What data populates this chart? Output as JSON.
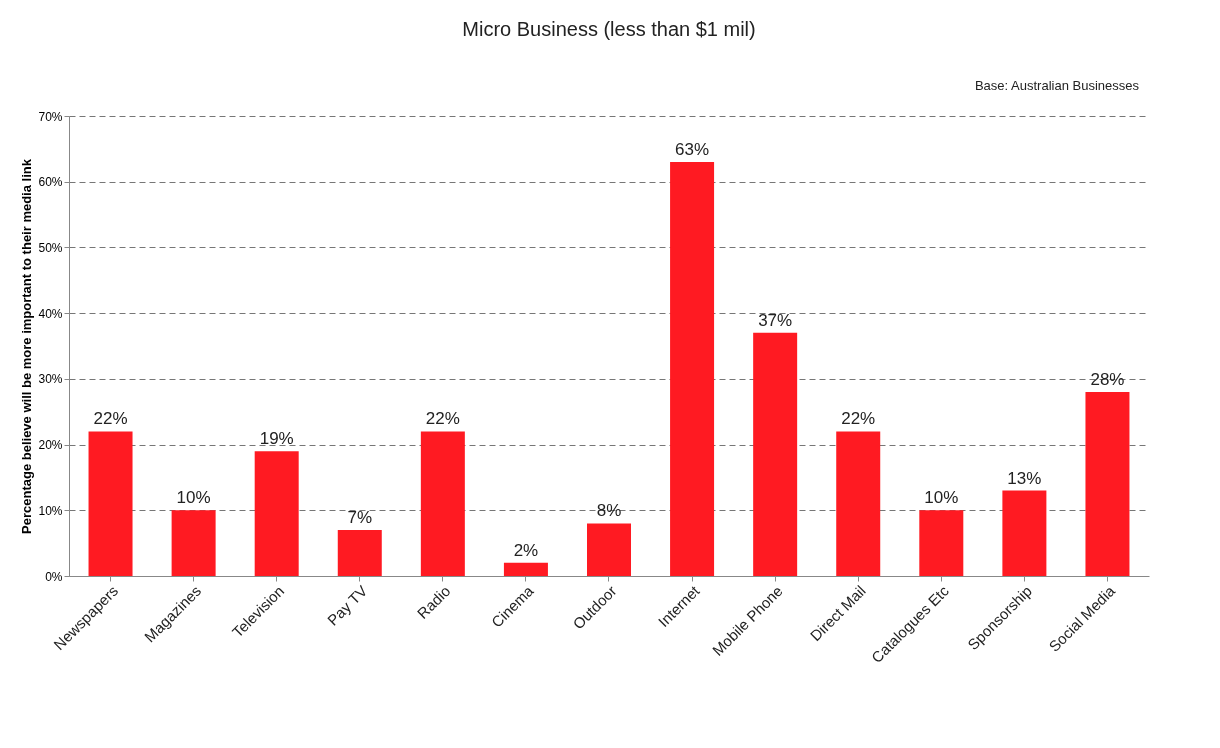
{
  "chart_data": {
    "type": "bar",
    "title": "Micro Business (less than $1 mil)",
    "ylabel": "Percentage believe will be more important to their media link",
    "annotations": [
      "Base: Australian Businesses"
    ],
    "categories": [
      "Newspapers",
      "Magazines",
      "Television",
      "Pay TV",
      "Radio",
      "Cinema",
      "Outdoor",
      "Internet",
      "Mobile Phone",
      "Direct Mail",
      "Catalogues Etc",
      "Sponsorship",
      "Social Media"
    ],
    "values": [
      22,
      10,
      19,
      7,
      22,
      2,
      8,
      63,
      37,
      22,
      10,
      13,
      28
    ],
    "value_labels": [
      "22%",
      "10%",
      "19%",
      "7%",
      "22%",
      "2%",
      "8%",
      "63%",
      "37%",
      "22%",
      "10%",
      "13%",
      "28%"
    ],
    "color": "#ff1a22",
    "ylim": [
      0,
      70
    ],
    "yticks": [
      {
        "value": 0,
        "label": "0%"
      },
      {
        "value": 10,
        "label": "10%"
      },
      {
        "value": 20,
        "label": "20%"
      },
      {
        "value": 30,
        "label": "30%"
      },
      {
        "value": 40,
        "label": "40%"
      },
      {
        "value": 50,
        "label": "50%"
      },
      {
        "value": 60,
        "label": "60%"
      },
      {
        "value": 70,
        "label": "70%"
      }
    ],
    "grid": "y"
  }
}
